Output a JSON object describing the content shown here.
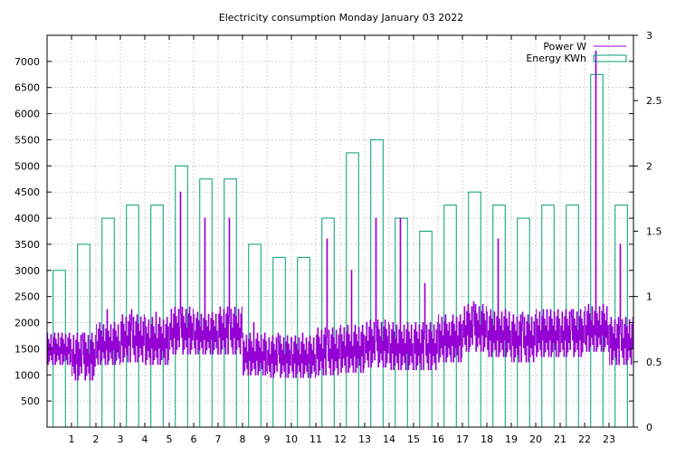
{
  "chart_data": {
    "type": "line",
    "title": "Electricity consumption Monday January 03 2022",
    "xlabel": "",
    "ylabel": "",
    "y2label": "",
    "x_ticks": [
      "1",
      "2",
      "3",
      "4",
      "5",
      "6",
      "7",
      "8",
      "9",
      "10",
      "11",
      "12",
      "13",
      "14",
      "15",
      "16",
      "17",
      "18",
      "19",
      "20",
      "21",
      "22",
      "23"
    ],
    "xlim": [
      0,
      24
    ],
    "ylim": [
      0,
      7500
    ],
    "y_ticks": [
      "500",
      "1000",
      "1500",
      "2000",
      "2500",
      "3000",
      "3500",
      "4000",
      "4500",
      "5000",
      "5500",
      "6000",
      "6500",
      "7000"
    ],
    "y2lim": [
      0,
      3
    ],
    "y2_ticks": [
      "0",
      "0.5",
      "1",
      "1.5",
      "2",
      "2.5",
      "3"
    ],
    "grid": true,
    "legend_position": "top-right",
    "colors": {
      "power": "#9400d3",
      "energy": "#009e73",
      "grid": "#a0a0a0"
    },
    "series": [
      {
        "name": "Power W",
        "type": "line",
        "axis": "y",
        "segments": [
          {
            "x_start": 0.0,
            "base": 1500,
            "amp": 300,
            "spike": 1800
          },
          {
            "x_start": 1.0,
            "base": 1350,
            "amp": 450,
            "spike": 1800
          },
          {
            "x_start": 2.0,
            "base": 1600,
            "amp": 400,
            "spike": 2250
          },
          {
            "x_start": 3.0,
            "base": 1700,
            "amp": 450,
            "spike": 2250
          },
          {
            "x_start": 4.0,
            "base": 1650,
            "amp": 450,
            "spike": 2200
          },
          {
            "x_start": 5.0,
            "base": 1850,
            "amp": 450,
            "spike": 4500
          },
          {
            "x_start": 6.0,
            "base": 1800,
            "amp": 400,
            "spike": 4000
          },
          {
            "x_start": 7.0,
            "base": 1850,
            "amp": 450,
            "spike": 4000
          },
          {
            "x_start": 8.0,
            "base": 1400,
            "amp": 400,
            "spike": 2000
          },
          {
            "x_start": 9.0,
            "base": 1350,
            "amp": 400,
            "spike": 1800
          },
          {
            "x_start": 10.0,
            "base": 1350,
            "amp": 400,
            "spike": 1800
          },
          {
            "x_start": 11.0,
            "base": 1450,
            "amp": 450,
            "spike": 3600
          },
          {
            "x_start": 12.0,
            "base": 1500,
            "amp": 450,
            "spike": 3000
          },
          {
            "x_start": 13.0,
            "base": 1600,
            "amp": 450,
            "spike": 4000
          },
          {
            "x_start": 14.0,
            "base": 1550,
            "amp": 450,
            "spike": 4000
          },
          {
            "x_start": 15.0,
            "base": 1550,
            "amp": 450,
            "spike": 2750
          },
          {
            "x_start": 16.0,
            "base": 1700,
            "amp": 450,
            "spike": 2000
          },
          {
            "x_start": 17.0,
            "base": 1900,
            "amp": 450,
            "spike": 2400
          },
          {
            "x_start": 18.0,
            "base": 1800,
            "amp": 450,
            "spike": 3600
          },
          {
            "x_start": 19.0,
            "base": 1700,
            "amp": 450,
            "spike": 2200
          },
          {
            "x_start": 20.0,
            "base": 1800,
            "amp": 450,
            "spike": 2250
          },
          {
            "x_start": 21.0,
            "base": 1800,
            "amp": 450,
            "spike": 2250
          },
          {
            "x_start": 22.0,
            "base": 1900,
            "amp": 450,
            "spike": 7200
          },
          {
            "x_start": 23.0,
            "base": 1650,
            "amp": 450,
            "spike": 3500
          }
        ]
      },
      {
        "name": "Energy KWh",
        "type": "box",
        "axis": "y2",
        "x": [
          0,
          1,
          2,
          3,
          4,
          5,
          6,
          7,
          8,
          9,
          10,
          11,
          12,
          13,
          14,
          15,
          16,
          17,
          18,
          19,
          20,
          21,
          22,
          23
        ],
        "values": [
          1.2,
          1.4,
          1.6,
          1.7,
          1.7,
          2.0,
          1.9,
          1.9,
          1.4,
          1.3,
          1.3,
          1.6,
          2.1,
          2.2,
          1.6,
          1.5,
          1.7,
          1.8,
          1.7,
          1.6,
          1.7,
          1.7,
          2.7,
          1.7
        ]
      }
    ]
  }
}
